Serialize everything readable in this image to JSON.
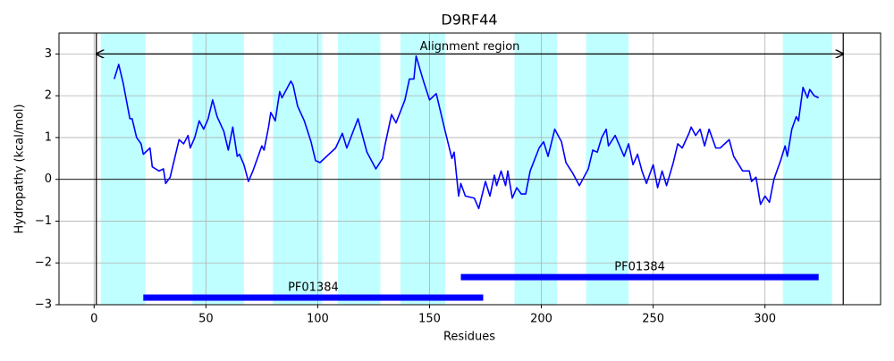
{
  "chart_data": {
    "type": "line",
    "title": "D9RF44",
    "xlabel": "Residues",
    "ylabel": "Hydropathy (kcal/mol)",
    "x": [
      9,
      11,
      13,
      16,
      17,
      19,
      21,
      22,
      25,
      26,
      29,
      31,
      32,
      34,
      36,
      38,
      40,
      42,
      43,
      45,
      47,
      49,
      51,
      53,
      55,
      58,
      60,
      62,
      64,
      65,
      67,
      69,
      71,
      73,
      75,
      76,
      78,
      79,
      81,
      83,
      84,
      88,
      89,
      91,
      94,
      97,
      99,
      101,
      105,
      108,
      111,
      113,
      118,
      122,
      126,
      129,
      130,
      133,
      135,
      139,
      141,
      143,
      144,
      147,
      150,
      153,
      155,
      157,
      160,
      161,
      163,
      164,
      166,
      170,
      172,
      175,
      177,
      179,
      180,
      182,
      184,
      185,
      187,
      189,
      191,
      193,
      195,
      199,
      201,
      203,
      206,
      209,
      211,
      214,
      217,
      219,
      221,
      223,
      225,
      227,
      229,
      230,
      233,
      237,
      239,
      241,
      243,
      245,
      247,
      250,
      252,
      254,
      256,
      259,
      261,
      263,
      266,
      267,
      269,
      271,
      273,
      275,
      278,
      280,
      284,
      286,
      290,
      293,
      294,
      296,
      298,
      300,
      302,
      304,
      307,
      309,
      310,
      312,
      314,
      315,
      317,
      319,
      320,
      322,
      324
    ],
    "values": [
      2.4,
      2.75,
      2.3,
      1.45,
      1.45,
      1.0,
      0.85,
      0.6,
      0.75,
      0.3,
      0.2,
      0.25,
      -0.1,
      0.05,
      0.5,
      0.95,
      0.85,
      1.05,
      0.75,
      1.0,
      1.4,
      1.2,
      1.45,
      1.9,
      1.5,
      1.15,
      0.7,
      1.25,
      0.55,
      0.6,
      0.35,
      -0.05,
      0.2,
      0.5,
      0.8,
      0.7,
      1.25,
      1.6,
      1.4,
      2.1,
      1.95,
      2.35,
      2.25,
      1.75,
      1.4,
      0.9,
      0.45,
      0.4,
      0.6,
      0.75,
      1.1,
      0.75,
      1.45,
      0.65,
      0.25,
      0.5,
      0.8,
      1.55,
      1.35,
      1.9,
      2.4,
      2.4,
      2.95,
      2.4,
      1.9,
      2.05,
      1.6,
      1.15,
      0.5,
      0.65,
      -0.4,
      -0.1,
      -0.4,
      -0.45,
      -0.7,
      -0.05,
      -0.4,
      0.1,
      -0.15,
      0.2,
      -0.15,
      0.2,
      -0.45,
      -0.2,
      -0.35,
      -0.35,
      0.2,
      0.75,
      0.9,
      0.55,
      1.2,
      0.9,
      0.4,
      0.15,
      -0.15,
      0.05,
      0.25,
      0.7,
      0.65,
      1.0,
      1.2,
      0.8,
      1.05,
      0.55,
      0.85,
      0.35,
      0.6,
      0.2,
      -0.1,
      0.35,
      -0.2,
      0.2,
      -0.15,
      0.4,
      0.85,
      0.75,
      1.1,
      1.25,
      1.05,
      1.2,
      0.8,
      1.2,
      0.75,
      0.75,
      0.95,
      0.55,
      0.2,
      0.2,
      -0.05,
      0.05,
      -0.6,
      -0.4,
      -0.55,
      0.0,
      0.45,
      0.8,
      0.55,
      1.2,
      1.5,
      1.4,
      2.2,
      1.95,
      2.15,
      2.0,
      1.95
    ],
    "color": "#0000ff",
    "xlim": [
      -15.7,
      351.7
    ],
    "ylim": [
      -3,
      3.5
    ],
    "xticks": [
      0,
      50,
      100,
      150,
      200,
      250,
      300
    ],
    "yticks": [
      {
        "value": -3,
        "label": "−3"
      },
      {
        "value": -2,
        "label": "−2"
      },
      {
        "value": -1,
        "label": "−1"
      },
      0,
      1,
      2,
      3
    ],
    "grid": true,
    "bands": [
      [
        3,
        23
      ],
      [
        44,
        67
      ],
      [
        80,
        102
      ],
      [
        109,
        128
      ],
      [
        137,
        157
      ],
      [
        188,
        207
      ],
      [
        220,
        239
      ],
      [
        308,
        330
      ]
    ],
    "band_color": "#bfffff",
    "zero_line": 0,
    "vlines": [
      1,
      335
    ],
    "alignment": {
      "label": "Alignment region",
      "start": 1,
      "end": 335,
      "y": 3
    },
    "domains": [
      {
        "label": "PF01384",
        "start": 22,
        "end": 174,
        "y": -2.83
      },
      {
        "label": "PF01384",
        "start": 164,
        "end": 324,
        "y": -2.34
      }
    ],
    "domain_color": "#0000ff"
  }
}
